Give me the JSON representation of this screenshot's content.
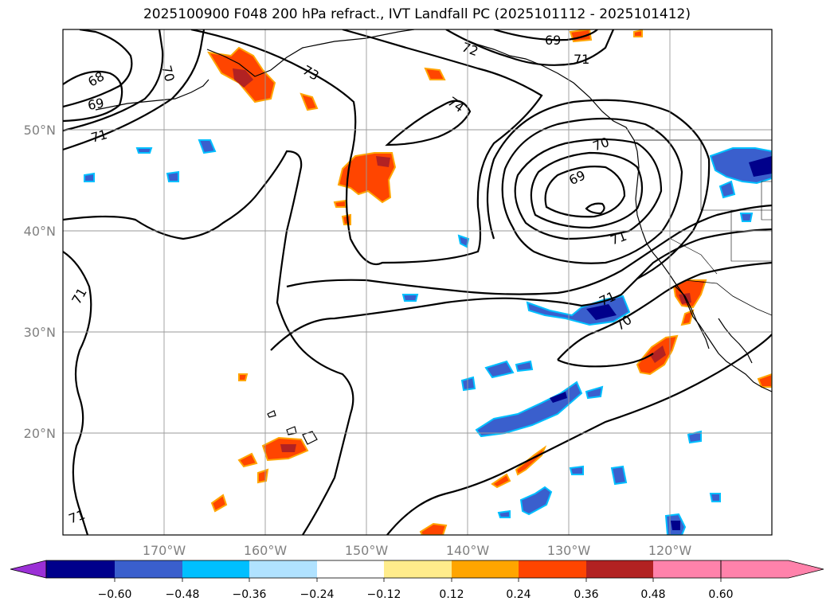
{
  "title": "2025100900 F048 200 hPa refract., IVT Landfall PC (2025101112 - 2025101412)",
  "map": {
    "lon_range": [
      -180,
      -110
    ],
    "lat_range": [
      10,
      60
    ],
    "lat_ticks": [
      "50°N",
      "40°N",
      "30°N",
      "20°N"
    ],
    "lon_ticks": [
      "170°W",
      "160°W",
      "150°W",
      "140°W",
      "130°W",
      "120°W"
    ]
  },
  "contour_labels": [
    {
      "text": "68"
    },
    {
      "text": "69"
    },
    {
      "text": "70"
    },
    {
      "text": "71"
    },
    {
      "text": "73"
    },
    {
      "text": "72"
    },
    {
      "text": "69"
    },
    {
      "text": "71"
    },
    {
      "text": "74"
    },
    {
      "text": "70"
    },
    {
      "text": "69"
    },
    {
      "text": "71"
    },
    {
      "text": "71"
    },
    {
      "text": "70"
    },
    {
      "text": "71"
    },
    {
      "text": "71"
    }
  ],
  "colorbar": {
    "tick_labels": [
      "−0.60",
      "−0.48",
      "−0.36",
      "−0.24",
      "−0.12",
      "0.12",
      "0.24",
      "0.36",
      "0.48",
      "0.60"
    ],
    "colors": [
      "#9b30d6",
      "#00008b",
      "#3a5fcd",
      "#00bfff",
      "#b0e2ff",
      "#ffffff",
      "#ffec8b",
      "#ffa500",
      "#ff4500",
      "#b22222",
      "#ff82ab"
    ]
  },
  "colors": {
    "positive_core": "#b22222",
    "positive_mid": "#ff4500",
    "positive_edge": "#ffa500",
    "negative_core": "#00008b",
    "negative_mid": "#3a5fcd",
    "negative_edge": "#00bfff"
  }
}
